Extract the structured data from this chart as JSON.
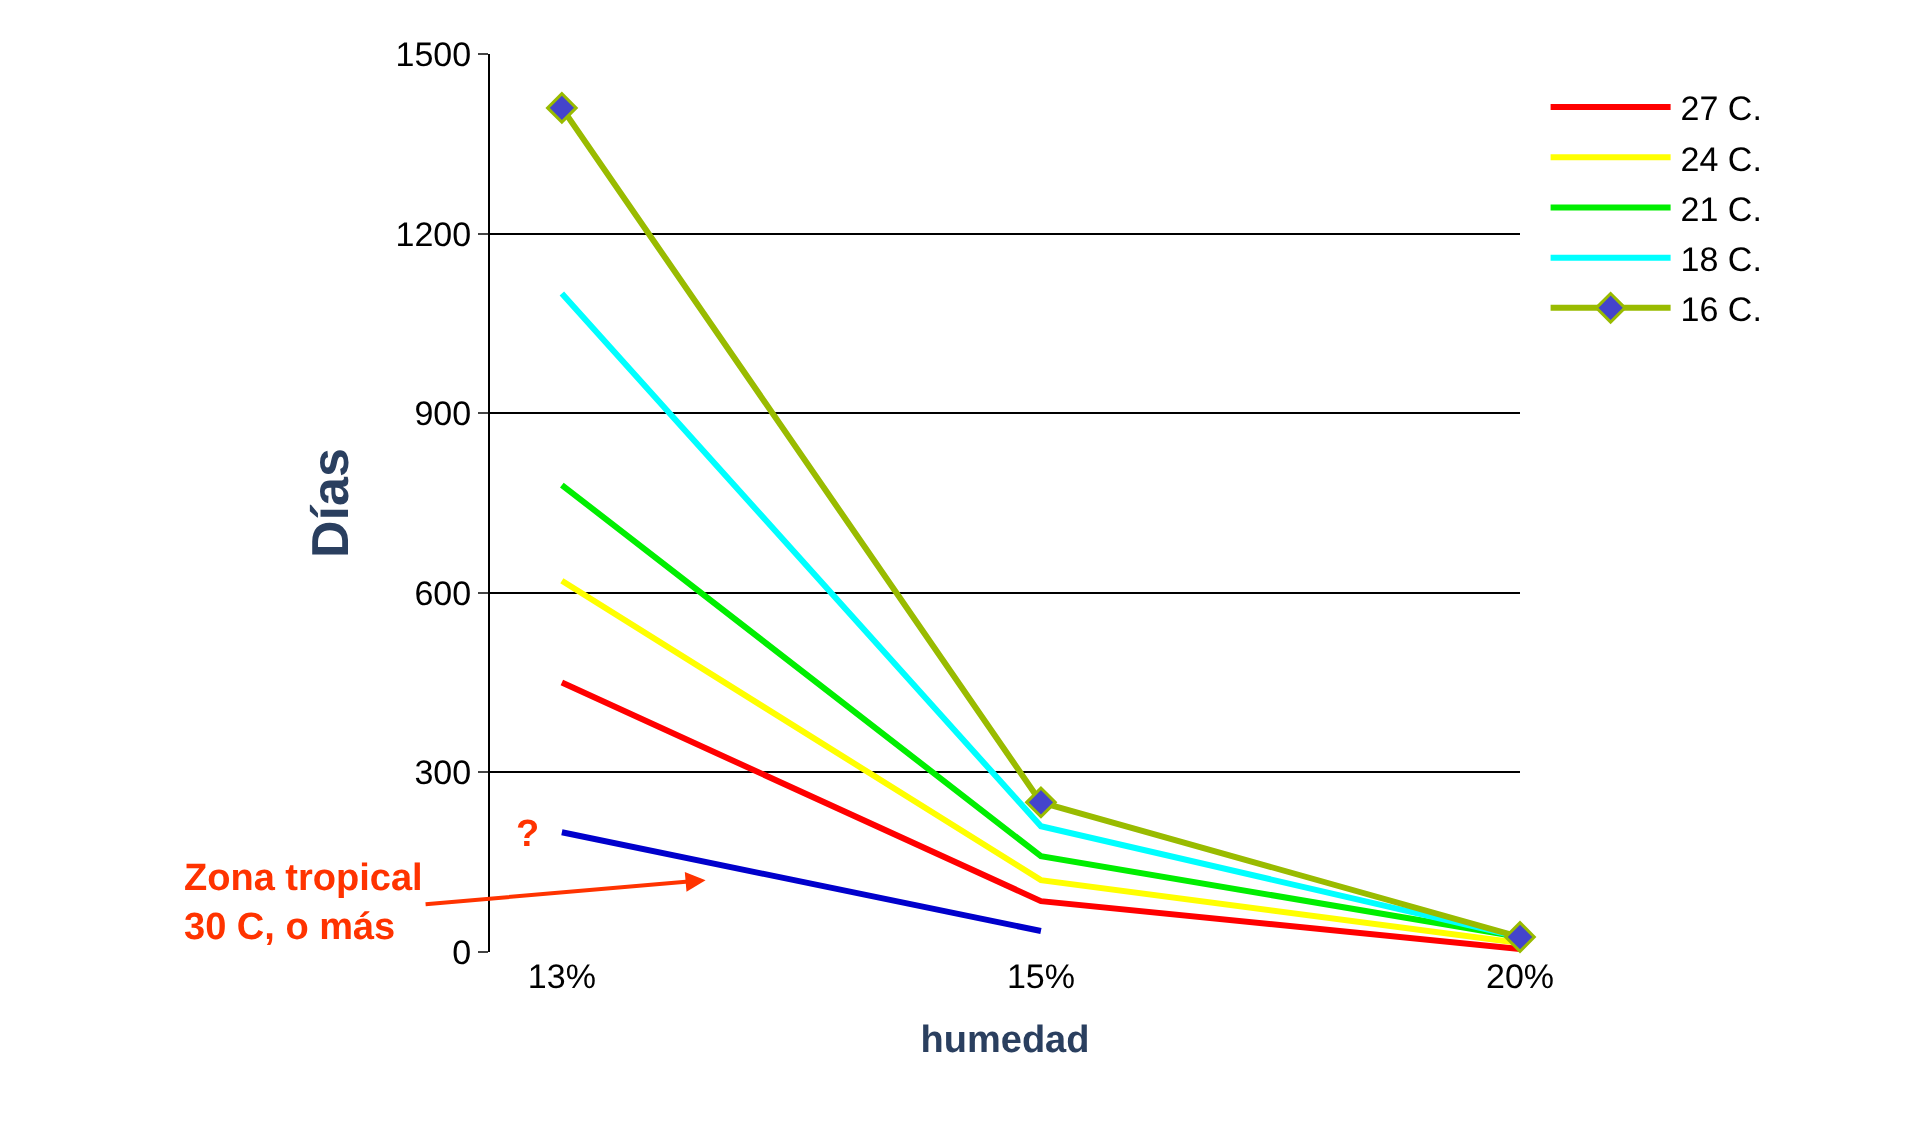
{
  "chart_data": {
    "type": "line",
    "xlabel": "humedad",
    "ylabel": "Días",
    "categories": [
      "13%",
      "15%",
      "20%"
    ],
    "ylim": [
      0,
      1500
    ],
    "yticks": [
      0,
      300,
      600,
      900,
      1200,
      1500
    ],
    "grid": "y",
    "legend": "right",
    "marker": "none",
    "line_style": "solid",
    "series": [
      {
        "name": "27 C.",
        "color": "#ff0000",
        "values": [
          450,
          85,
          5
        ]
      },
      {
        "name": "24 C.",
        "color": "#ffff00",
        "values": [
          620,
          120,
          15
        ]
      },
      {
        "name": "21 C.",
        "color": "#00ee00",
        "values": [
          780,
          160,
          25
        ]
      },
      {
        "name": "18 C.",
        "color": "#00ffff",
        "values": [
          1100,
          210,
          25
        ]
      },
      {
        "name": "16 C.",
        "color": "#99bb00",
        "values": [
          1410,
          250,
          25
        ],
        "marker": "diamond"
      },
      {
        "color": "#0000cc",
        "values": [
          200,
          35,
          null
        ]
      }
    ],
    "annotations": [
      "?",
      "Zona tropical\n30 C, o más"
    ]
  }
}
